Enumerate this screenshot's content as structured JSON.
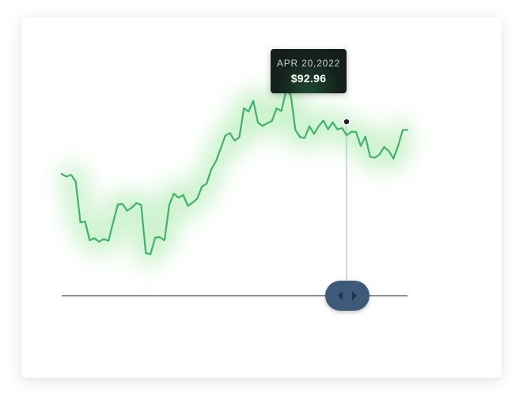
{
  "chart_data": {
    "type": "line",
    "title": "",
    "xlabel": "",
    "ylabel": "",
    "grid": false,
    "legend": "none",
    "ylim": [
      60,
      110
    ],
    "line_color": "#3fb36b",
    "glow_color": "#8be38f",
    "handle_color": "#3d5a78",
    "tooltip": {
      "date": "APR 20,2022",
      "price": "$92.96",
      "index": 63
    },
    "series": [
      {
        "values": [
          83.6,
          83.0,
          83.4,
          81.9,
          72.8,
          73.0,
          68.8,
          69.3,
          68.5,
          69.1,
          68.7,
          72.8,
          76.8,
          76.9,
          75.4,
          76.1,
          77.1,
          76.7,
          66.0,
          65.7,
          69.4,
          69.5,
          68.8,
          76.6,
          79.2,
          78.3,
          78.9,
          76.5,
          77.2,
          78.1,
          80.8,
          81.4,
          84.6,
          86.4,
          89.2,
          92.1,
          92.7,
          91.0,
          91.7,
          98.2,
          97.5,
          99.9,
          95.0,
          94.3,
          94.9,
          95.4,
          98.2,
          97.6,
          102.0,
          101.3,
          93.4,
          91.8,
          91.6,
          94.2,
          92.5,
          94.2,
          95.5,
          93.5,
          95.1,
          93.5,
          93.8,
          92.2,
          93.0,
          92.96,
          89.8,
          91.9,
          87.4,
          87.2,
          87.9,
          89.6,
          88.7,
          87.0,
          89.9,
          93.4,
          93.4
        ]
      }
    ]
  }
}
